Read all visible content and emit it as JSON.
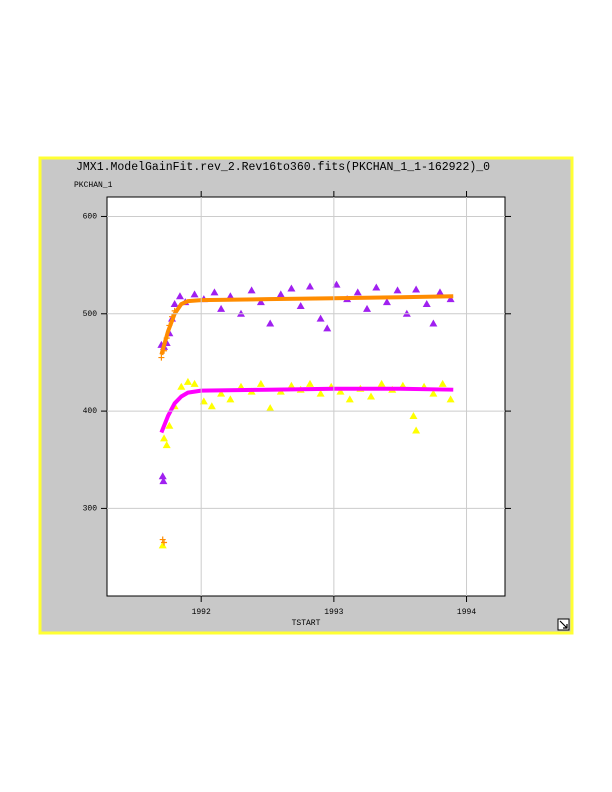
{
  "chart_data": {
    "type": "scatter",
    "title": "JMX1.ModelGainFit.rev_2.Rev16to360.fits(PKCHAN_1_1-162922)_0",
    "y_label": "PKCHAN_1",
    "x_label": "TSTART",
    "xlim": [
      1991.29,
      1994.29
    ],
    "xticks": [
      1992,
      1993,
      1994
    ],
    "ylim": [
      210,
      620
    ],
    "yticks": [
      300,
      400,
      500,
      600
    ],
    "grid": true,
    "series": [
      {
        "color": "#a020f0",
        "marker": "triangle",
        "x": [
          1991.7,
          1991.72,
          1991.74,
          1991.76,
          1991.78,
          1991.8,
          1991.84,
          1991.88,
          1991.95,
          1992.02,
          1992.1,
          1992.15,
          1992.22,
          1992.3,
          1992.38,
          1992.45,
          1992.52,
          1992.6,
          1992.68,
          1992.75,
          1992.82,
          1992.9,
          1992.95,
          1993.02,
          1993.1,
          1993.18,
          1993.25,
          1993.32,
          1993.4,
          1993.48,
          1993.55,
          1993.62,
          1993.7,
          1993.75,
          1993.8,
          1993.88,
          1991.71,
          1991.715
        ],
        "values": [
          468,
          466,
          470,
          480,
          495,
          510,
          518,
          512,
          520,
          515,
          522,
          505,
          518,
          500,
          524,
          512,
          490,
          520,
          526,
          508,
          528,
          495,
          485,
          530,
          515,
          522,
          505,
          527,
          512,
          524,
          500,
          525,
          510,
          490,
          522,
          515,
          333,
          328
        ]
      },
      {
        "color": "#ffff00",
        "marker": "triangle",
        "x": [
          1991.72,
          1991.74,
          1991.76,
          1991.8,
          1991.85,
          1991.9,
          1991.95,
          1992.02,
          1992.08,
          1992.15,
          1992.22,
          1992.3,
          1992.38,
          1992.45,
          1992.52,
          1992.6,
          1992.68,
          1992.75,
          1992.82,
          1992.9,
          1992.98,
          1993.05,
          1993.12,
          1993.2,
          1993.28,
          1993.36,
          1993.44,
          1993.52,
          1993.6,
          1993.62,
          1993.68,
          1993.75,
          1993.82,
          1993.88,
          1991.71
        ],
        "values": [
          372,
          365,
          385,
          405,
          425,
          430,
          428,
          410,
          405,
          418,
          412,
          425,
          420,
          428,
          403,
          420,
          426,
          422,
          428,
          418,
          425,
          420,
          412,
          423,
          415,
          428,
          422,
          426,
          395,
          380,
          425,
          418,
          428,
          412,
          262
        ]
      },
      {
        "color": "#ff8c00",
        "marker": "plus",
        "x": [
          1991.7,
          1991.72,
          1991.74,
          1991.76,
          1991.78,
          1991.8,
          1991.71,
          1991.72
        ],
        "values": [
          455,
          462,
          475,
          488,
          497,
          503,
          268,
          265
        ]
      },
      {
        "color": "#ff8c00",
        "marker": "line",
        "x": [
          1991.7,
          1991.75,
          1991.8,
          1991.85,
          1991.9,
          1992.0,
          1992.5,
          1993.0,
          1993.5,
          1993.9
        ],
        "values": [
          458,
          482,
          500,
          510,
          513,
          514,
          515,
          516,
          517,
          518
        ]
      },
      {
        "color": "#ff00ff",
        "marker": "line",
        "x": [
          1991.7,
          1991.75,
          1991.8,
          1991.85,
          1991.9,
          1992.0,
          1992.5,
          1993.0,
          1993.5,
          1993.9
        ],
        "values": [
          378,
          395,
          408,
          415,
          419,
          421,
          422,
          423,
          423,
          422
        ]
      }
    ]
  }
}
